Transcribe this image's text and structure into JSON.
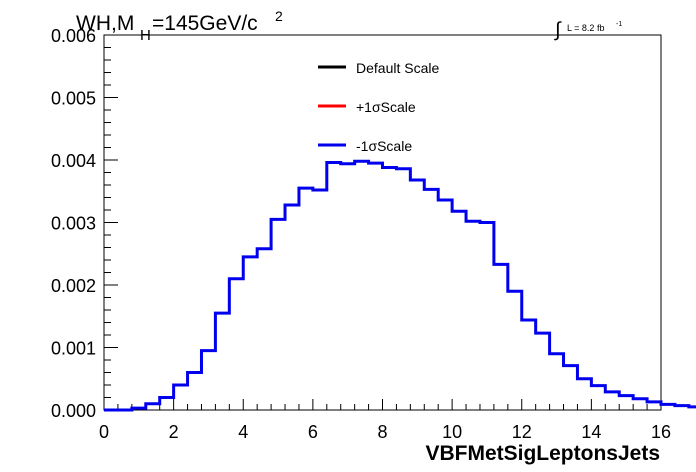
{
  "chart_data": {
    "type": "histogram",
    "title_main": "WH,M",
    "title_sub": "H",
    "title_rest": "=145GeV/c",
    "title_sup": "2",
    "lumi_label": "L = 8.2 fb",
    "lumi_sup": "-1",
    "xlabel": "VBFMetSigLeptonsJets",
    "xlim": [
      0,
      16
    ],
    "ylim": [
      0,
      0.006
    ],
    "x_ticks": [
      "0",
      "2",
      "4",
      "6",
      "8",
      "10",
      "12",
      "14",
      "16"
    ],
    "y_ticks": [
      "0.000",
      "0.001",
      "0.002",
      "0.003",
      "0.004",
      "0.005",
      "0.006"
    ],
    "bin_width": 0.4,
    "bin_start": 0,
    "legend": {
      "position": "top-center",
      "entries": [
        {
          "label": "Default Scale",
          "color": "#000000"
        },
        {
          "label": "+1σScale",
          "color": "#ff0000"
        },
        {
          "label": "-1σScale",
          "color": "#0000ee"
        }
      ]
    },
    "series": [
      {
        "color": "#0000ee",
        "values": [
          0.0,
          0.0,
          3e-05,
          0.0001,
          0.0002,
          0.0004,
          0.0006,
          0.00095,
          0.00155,
          0.0021,
          0.00245,
          0.00258,
          0.00305,
          0.00328,
          0.00355,
          0.00352,
          0.00396,
          0.00394,
          0.00398,
          0.00395,
          0.00388,
          0.00386,
          0.00368,
          0.00353,
          0.00336,
          0.00318,
          0.00302,
          0.003,
          0.00233,
          0.0019,
          0.00144,
          0.00123,
          0.0009,
          0.00071,
          0.0005,
          0.00039,
          0.00029,
          0.00023,
          0.00018,
          0.00013,
          9e-05,
          7e-05,
          5e-05,
          3e-05,
          2e-05,
          2e-05,
          1e-05,
          1e-05,
          1e-05,
          0.0,
          0.0,
          0.0,
          0.0,
          0.0,
          0.0,
          0.0,
          0.0,
          0.0,
          0.0,
          0.0
        ]
      }
    ]
  }
}
